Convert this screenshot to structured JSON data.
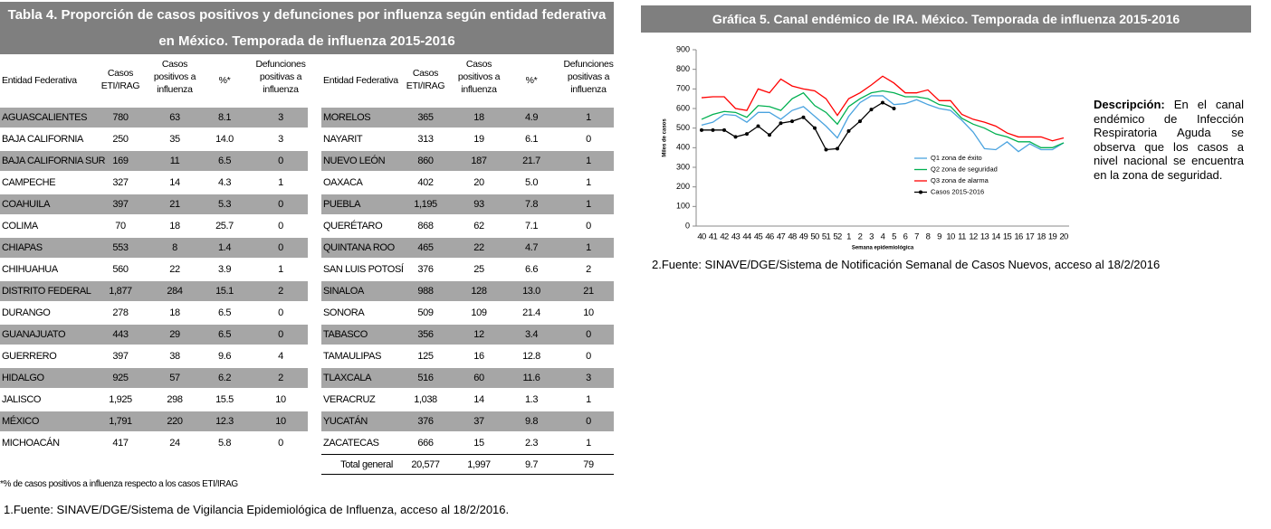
{
  "table": {
    "title": "Tabla 4. Proporción de casos positivos  y defunciones por influenza según entidad federativa en México. Temporada de influenza 2015-2016",
    "headers": [
      "Entidad Federativa",
      "Casos ETI/IRAG",
      "Casos positivos a influenza",
      "%*",
      "Defunciones positivas a influenza"
    ],
    "left_rows": [
      [
        "AGUASCALIENTES",
        "780",
        "63",
        "8.1",
        "3"
      ],
      [
        "BAJA CALIFORNIA",
        "250",
        "35",
        "14.0",
        "3"
      ],
      [
        "BAJA CALIFORNIA SUR",
        "169",
        "11",
        "6.5",
        "0"
      ],
      [
        "CAMPECHE",
        "327",
        "14",
        "4.3",
        "1"
      ],
      [
        "COAHUILA",
        "397",
        "21",
        "5.3",
        "0"
      ],
      [
        "COLIMA",
        "70",
        "18",
        "25.7",
        "0"
      ],
      [
        "CHIAPAS",
        "553",
        "8",
        "1.4",
        "0"
      ],
      [
        "CHIHUAHUA",
        "560",
        "22",
        "3.9",
        "1"
      ],
      [
        "DISTRITO FEDERAL",
        "1,877",
        "284",
        "15.1",
        "2"
      ],
      [
        "DURANGO",
        "278",
        "18",
        "6.5",
        "0"
      ],
      [
        "GUANAJUATO",
        "443",
        "29",
        "6.5",
        "0"
      ],
      [
        "GUERRERO",
        "397",
        "38",
        "9.6",
        "4"
      ],
      [
        "HIDALGO",
        "925",
        "57",
        "6.2",
        "2"
      ],
      [
        "JALISCO",
        "1,925",
        "298",
        "15.5",
        "10"
      ],
      [
        "MÉXICO",
        "1,791",
        "220",
        "12.3",
        "10"
      ],
      [
        "MICHOACÁN",
        "417",
        "24",
        "5.8",
        "0"
      ]
    ],
    "right_rows": [
      [
        "MORELOS",
        "365",
        "18",
        "4.9",
        "1"
      ],
      [
        "NAYARIT",
        "313",
        "19",
        "6.1",
        "0"
      ],
      [
        "NUEVO LEÓN",
        "860",
        "187",
        "21.7",
        "1"
      ],
      [
        "OAXACA",
        "402",
        "20",
        "5.0",
        "1"
      ],
      [
        "PUEBLA",
        "1,195",
        "93",
        "7.8",
        "1"
      ],
      [
        "QUERÉTARO",
        "868",
        "62",
        "7.1",
        "0"
      ],
      [
        "QUINTANA ROO",
        "465",
        "22",
        "4.7",
        "1"
      ],
      [
        "SAN LUIS POTOSÍ",
        "376",
        "25",
        "6.6",
        "2"
      ],
      [
        "SINALOA",
        "988",
        "128",
        "13.0",
        "21"
      ],
      [
        "SONORA",
        "509",
        "109",
        "21.4",
        "10"
      ],
      [
        "TABASCO",
        "356",
        "12",
        "3.4",
        "0"
      ],
      [
        "TAMAULIPAS",
        "125",
        "16",
        "12.8",
        "0"
      ],
      [
        "TLAXCALA",
        "516",
        "60",
        "11.6",
        "3"
      ],
      [
        "VERACRUZ",
        "1,038",
        "14",
        "1.3",
        "1"
      ],
      [
        "YUCATÁN",
        "376",
        "37",
        "9.8",
        "0"
      ],
      [
        "ZACATECAS",
        "666",
        "15",
        "2.3",
        "1"
      ]
    ],
    "total": [
      "Total general",
      "20,577",
      "1,997",
      "9.7",
      "79"
    ],
    "footnote": "*% de casos positivos a influenza respecto a los casos ETI/IRAG",
    "source": "1.Fuente: SINAVE/DGE/Sistema de Vigilancia Epidemiológica de Influenza, acceso al 18/2/2016."
  },
  "chart_header": "Gráfica 5. Canal endémico de IRA.  México. Temporada de influenza 2015-2016",
  "chart_data": {
    "type": "line",
    "x_label": "Semana epidemiológica",
    "y_label": "Miles de casos",
    "categories": [
      40,
      41,
      42,
      43,
      44,
      45,
      46,
      47,
      48,
      49,
      50,
      51,
      52,
      1,
      2,
      3,
      4,
      5,
      6,
      7,
      8,
      9,
      10,
      11,
      12,
      13,
      14,
      15,
      16,
      17,
      18,
      19,
      20
    ],
    "ylim": [
      0,
      900
    ],
    "yticks": [
      0,
      100,
      200,
      300,
      400,
      500,
      600,
      700,
      800,
      900
    ],
    "grid": false,
    "legend": "lower right",
    "series": [
      {
        "name": "Q1 zona de éxito",
        "color": "#4aa3df",
        "marker": false,
        "values": [
          515,
          530,
          570,
          565,
          530,
          580,
          580,
          545,
          590,
          610,
          560,
          510,
          450,
          560,
          630,
          665,
          665,
          620,
          625,
          645,
          620,
          600,
          590,
          540,
          480,
          395,
          390,
          430,
          380,
          420,
          390,
          390,
          425
        ]
      },
      {
        "name": "Q2 zona de seguridad",
        "color": "#00b050",
        "marker": false,
        "values": [
          545,
          570,
          585,
          580,
          555,
          615,
          610,
          590,
          650,
          680,
          615,
          580,
          520,
          610,
          650,
          680,
          690,
          680,
          660,
          660,
          650,
          620,
          610,
          550,
          520,
          500,
          470,
          455,
          430,
          430,
          400,
          400,
          425
        ]
      },
      {
        "name": "Q3 zona de alarma",
        "color": "#ff0000",
        "marker": false,
        "values": [
          655,
          660,
          660,
          600,
          590,
          700,
          680,
          750,
          715,
          700,
          690,
          650,
          565,
          650,
          680,
          720,
          765,
          730,
          680,
          680,
          695,
          640,
          640,
          570,
          545,
          530,
          510,
          475,
          455,
          455,
          455,
          435,
          450
        ]
      },
      {
        "name": "Casos 2015-2016",
        "color": "#000000",
        "marker": true,
        "values": [
          490,
          490,
          490,
          455,
          470,
          510,
          465,
          525,
          535,
          555,
          500,
          390,
          395,
          485,
          535,
          595,
          630,
          600,
          null,
          null,
          null,
          null,
          null,
          null,
          null,
          null,
          null,
          null,
          null,
          null,
          null,
          null,
          null
        ]
      }
    ]
  },
  "description": {
    "label": "Descripción:",
    "text": "En el canal endémico de Infección Respiratoria Aguda se observa que los casos a nivel nacional se encuentra en la zona de seguridad."
  },
  "chart_source": "2.Fuente: SINAVE/DGE/Sistema de Notificación Semanal de Casos Nuevos, acceso al 18/2/2016"
}
